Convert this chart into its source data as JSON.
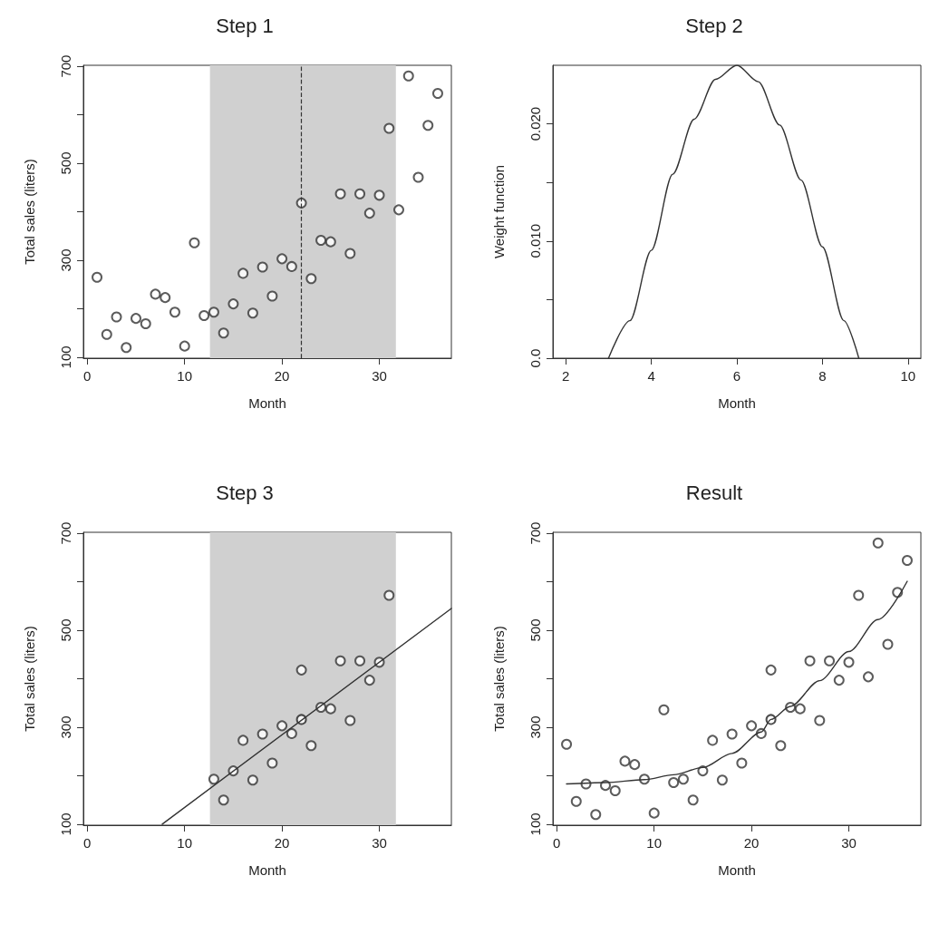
{
  "chart_data": [
    {
      "type": "scatter",
      "title": "Step 1",
      "xlabel": "Month",
      "ylabel": "Total sales (liters)",
      "grid": false,
      "xlim": [
        -0.4,
        37.4
      ],
      "xticks": [
        0,
        10,
        20,
        30
      ],
      "ylim": [
        98,
        702
      ],
      "yticks": [
        100,
        {
          "value": 200,
          "label": null
        },
        300,
        {
          "value": 400,
          "label": null
        },
        500,
        {
          "value": 600,
          "label": null
        },
        700
      ],
      "bands": [
        {
          "axis": "x",
          "from": 12.6,
          "to": 31.7,
          "color": "#d0d0d0"
        }
      ],
      "ref_lines": [
        {
          "axis": "x",
          "value": 22,
          "line_style": "dashed"
        }
      ],
      "series": [
        {
          "marker": "circle",
          "color": "#333333",
          "x": [
            1,
            2,
            3,
            4,
            5,
            6,
            7,
            8,
            9,
            10,
            11,
            12,
            13,
            14,
            15,
            16,
            17,
            18,
            19,
            20,
            21,
            22,
            23,
            24,
            25,
            26,
            27,
            28,
            29,
            30,
            31,
            32,
            33,
            34,
            35,
            36
          ],
          "values": [
            265,
            147,
            183,
            120,
            180,
            169,
            230,
            223,
            193,
            123,
            336,
            186,
            193,
            150,
            210,
            273,
            191,
            286,
            226,
            303,
            287,
            418,
            262,
            341,
            338,
            437,
            314,
            437,
            397,
            434,
            572,
            404,
            680,
            471,
            578,
            644
          ]
        }
      ]
    },
    {
      "type": "line",
      "title": "Step 2",
      "xlabel": "Month",
      "ylabel": "Weight function",
      "grid": false,
      "line_style": "solid",
      "xlim": [
        1.7,
        10.3
      ],
      "xticks": [
        2,
        4,
        6,
        8,
        10
      ],
      "ylim": [
        0,
        0.025
      ],
      "yticks": [
        {
          "value": 0,
          "label": "0.0"
        },
        {
          "value": 0.005,
          "label": null
        },
        {
          "value": 0.01,
          "label": "0.010"
        },
        {
          "value": 0.015,
          "label": null
        },
        {
          "value": 0.02,
          "label": "0.020"
        }
      ],
      "series": [
        {
          "marker": "none",
          "color": "#333333",
          "x": [
            3,
            3.5,
            4,
            4.5,
            5,
            5.5,
            6,
            6.5,
            7,
            7.5,
            8,
            8.5,
            8.85
          ],
          "values": [
            0,
            0.0032,
            0.0092,
            0.0157,
            0.0204,
            0.0238,
            0.025,
            0.0236,
            0.0199,
            0.0152,
            0.0095,
            0.0032,
            0
          ]
        }
      ]
    },
    {
      "type": "scatter",
      "title": "Step 3",
      "xlabel": "Month",
      "ylabel": "Total sales (liters)",
      "grid": false,
      "line_style": "solid",
      "xlim": [
        -0.4,
        37.4
      ],
      "xticks": [
        0,
        10,
        20,
        30
      ],
      "ylim": [
        98,
        702
      ],
      "yticks": [
        100,
        {
          "value": 200,
          "label": null
        },
        300,
        {
          "value": 400,
          "label": null
        },
        500,
        {
          "value": 600,
          "label": null
        },
        700
      ],
      "bands": [
        {
          "axis": "x",
          "from": 12.6,
          "to": 31.7,
          "color": "#d0d0d0"
        }
      ],
      "series": [
        {
          "marker": "circle",
          "color": "#333333",
          "x": [
            13,
            14,
            15,
            16,
            17,
            18,
            19,
            20,
            21,
            22,
            23,
            24,
            25,
            26,
            27,
            28,
            29,
            30,
            31
          ],
          "values": [
            193,
            150,
            210,
            273,
            191,
            286,
            226,
            303,
            287,
            418,
            262,
            341,
            338,
            437,
            314,
            437,
            397,
            434,
            572
          ]
        },
        {
          "type": "line",
          "marker": "none",
          "color": "#333333",
          "x": [
            7.7,
            37.4
          ],
          "values": [
            100,
            545
          ]
        },
        {
          "marker": "circle",
          "color": "#222222",
          "x": [
            22
          ],
          "values": [
            316
          ]
        }
      ]
    },
    {
      "type": "scatter",
      "title": "Result",
      "xlabel": "Month",
      "ylabel": "Total sales (liters)",
      "grid": false,
      "line_style": "solid",
      "xlim": [
        -0.4,
        37.4
      ],
      "xticks": [
        0,
        10,
        20,
        30
      ],
      "ylim": [
        98,
        702
      ],
      "yticks": [
        100,
        {
          "value": 200,
          "label": null
        },
        300,
        {
          "value": 400,
          "label": null
        },
        500,
        {
          "value": 600,
          "label": null
        },
        700
      ],
      "series": [
        {
          "marker": "circle",
          "color": "#333333",
          "x": [
            1,
            2,
            3,
            4,
            5,
            6,
            7,
            8,
            9,
            10,
            11,
            12,
            13,
            14,
            15,
            16,
            17,
            18,
            19,
            20,
            21,
            22,
            23,
            24,
            25,
            26,
            27,
            28,
            29,
            30,
            31,
            32,
            33,
            34,
            35,
            36
          ],
          "values": [
            265,
            147,
            183,
            120,
            180,
            169,
            230,
            223,
            193,
            123,
            336,
            186,
            193,
            150,
            210,
            273,
            191,
            286,
            226,
            303,
            287,
            418,
            262,
            341,
            338,
            437,
            314,
            437,
            397,
            434,
            572,
            404,
            680,
            471,
            578,
            644
          ]
        },
        {
          "type": "line",
          "marker": "none",
          "color": "#333333",
          "x": [
            1,
            5,
            9,
            12,
            15,
            18,
            21,
            22,
            24,
            27,
            30,
            33,
            36
          ],
          "values": [
            183,
            186,
            192,
            202,
            217,
            246,
            290,
            316,
            343,
            396,
            456,
            522,
            601
          ]
        },
        {
          "marker": "circle",
          "color": "#222222",
          "x": [
            22
          ],
          "values": [
            316
          ]
        }
      ]
    }
  ]
}
